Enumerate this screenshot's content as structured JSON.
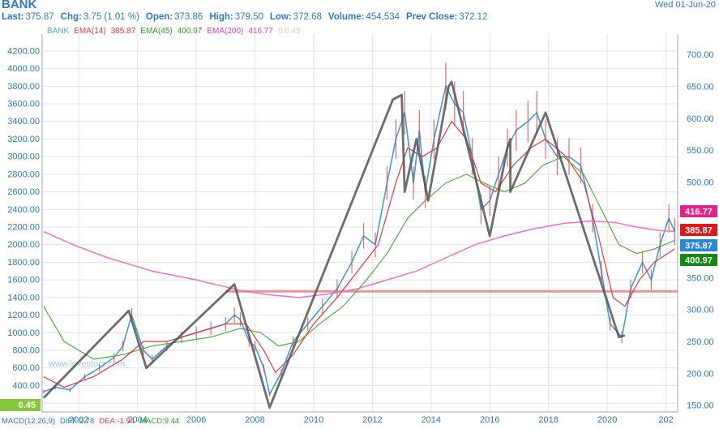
{
  "header": {
    "ticker": "BANK",
    "date": "Wed 01-Jun-20",
    "quote": [
      {
        "label": "Last:",
        "value": "375.87"
      },
      {
        "label": "Chg:",
        "value": "3.75 (1.01 %)"
      },
      {
        "label": "Open:",
        "value": "373.86"
      },
      {
        "label": "High:",
        "value": "379.50"
      },
      {
        "label": "Low:",
        "value": "372.68"
      },
      {
        "label": "Volume:",
        "value": "454,534"
      },
      {
        "label": "Prev Close:",
        "value": "372.12"
      }
    ],
    "legend": [
      {
        "text": "BANK",
        "color": "#5aa0d8"
      },
      {
        "text": "EMA(14)",
        "color": "#e23a3a"
      },
      {
        "text": "385.87",
        "color": "#e23a3a"
      },
      {
        "text": "EMA(45)",
        "color": "#2f9a2f"
      },
      {
        "text": "400.97",
        "color": "#2f9a2f"
      },
      {
        "text": "EMA(200)",
        "color": "#e040b0"
      },
      {
        "text": "416.77",
        "color": "#e040b0"
      },
      {
        "text": "0.0.45",
        "color": "#c8e0a0"
      }
    ],
    "macd": [
      {
        "text": "MACD(12,26,9)",
        "color": "#2c7bbf"
      },
      {
        "text": "DIFF:2.78",
        "color": "#2c7bbf"
      },
      {
        "text": "DEA:-1.94",
        "color": "#e23a3a"
      },
      {
        "text": "MACD:9.44",
        "color": "#2f9a2f"
      }
    ],
    "watermark": "www.investorz.com"
  },
  "chart_data": {
    "type": "line",
    "x_ticks": [
      "2002",
      "2004",
      "2006",
      "2008",
      "2010",
      "2012",
      "2014",
      "2016",
      "2018",
      "2020",
      "202"
    ],
    "x_range": [
      2000.75,
      2022.4
    ],
    "left_axis": {
      "ticks": [
        "200.00",
        "400.00",
        "600.00",
        "800.00",
        "1000.00",
        "1200.00",
        "1400.00",
        "1600.00",
        "1800.00",
        "2000.00",
        "2200.00",
        "2400.00",
        "2600.00",
        "2800.00",
        "3000.00",
        "3200.00",
        "3400.00",
        "3600.00",
        "3800.00",
        "4000.00",
        "4200.00"
      ],
      "range": [
        100,
        4300
      ]
    },
    "right_axis": {
      "ticks": [
        "150.00",
        "200.00",
        "250.00",
        "300.00",
        "350.00",
        "400.00",
        "450.00",
        "500.00",
        "550.00",
        "600.00",
        "650.00",
        "700.00"
      ],
      "range": [
        140,
        720
      ]
    },
    "badges": [
      {
        "text": "416.77",
        "value": 416.77,
        "color": "#e8208c"
      },
      {
        "text": "385.87",
        "value": 385.87,
        "color": "#e01818"
      },
      {
        "text": "375.87",
        "value": 375.87,
        "color": "#2a86d8"
      },
      {
        "text": "400.97",
        "value": 400.97,
        "color": "#138a13"
      }
    ],
    "left_badge": {
      "text": "0.45",
      "color": "#86c83c"
    },
    "price": [
      [
        2000.8,
        330
      ],
      [
        2001.2,
        380
      ],
      [
        2001.7,
        350
      ],
      [
        2002.2,
        500
      ],
      [
        2002.7,
        600
      ],
      [
        2003.2,
        720
      ],
      [
        2003.5,
        850
      ],
      [
        2003.8,
        1200
      ],
      [
        2004.2,
        800
      ],
      [
        2004.5,
        700
      ],
      [
        2005,
        850
      ],
      [
        2005.5,
        950
      ],
      [
        2006,
        1000
      ],
      [
        2006.5,
        1050
      ],
      [
        2007,
        1100
      ],
      [
        2007.3,
        1200
      ],
      [
        2007.5,
        1150
      ],
      [
        2007.8,
        900
      ],
      [
        2008,
        850
      ],
      [
        2008.3,
        600
      ],
      [
        2008.5,
        300
      ],
      [
        2008.9,
        550
      ],
      [
        2009.3,
        900
      ],
      [
        2009.8,
        1100
      ],
      [
        2010.3,
        1300
      ],
      [
        2010.8,
        1500
      ],
      [
        2011.3,
        1800
      ],
      [
        2011.7,
        2100
      ],
      [
        2012.1,
        2000
      ],
      [
        2012.5,
        2700
      ],
      [
        2012.8,
        3200
      ],
      [
        2013.1,
        3500
      ],
      [
        2013.4,
        2700
      ],
      [
        2013.6,
        3300
      ],
      [
        2013.8,
        2600
      ],
      [
        2014.1,
        3200
      ],
      [
        2014.5,
        3800
      ],
      [
        2014.8,
        3600
      ],
      [
        2015.1,
        3500
      ],
      [
        2015.4,
        3000
      ],
      [
        2015.7,
        2400
      ],
      [
        2016,
        2500
      ],
      [
        2016.3,
        2800
      ],
      [
        2016.6,
        3100
      ],
      [
        2016.9,
        3300
      ],
      [
        2017.3,
        3400
      ],
      [
        2017.6,
        3500
      ],
      [
        2017.9,
        3200
      ],
      [
        2018.3,
        3000
      ],
      [
        2018.7,
        3000
      ],
      [
        2019.1,
        2900
      ],
      [
        2019.5,
        2300
      ],
      [
        2019.8,
        1700
      ],
      [
        2020.1,
        1100
      ],
      [
        2020.5,
        950
      ],
      [
        2020.8,
        1500
      ],
      [
        2021.2,
        1800
      ],
      [
        2021.5,
        1600
      ],
      [
        2021.8,
        2000
      ],
      [
        2022.1,
        2300
      ],
      [
        2022.3,
        2150
      ]
    ],
    "ema14": [
      [
        2000.8,
        500
      ],
      [
        2001.5,
        380
      ],
      [
        2002.5,
        500
      ],
      [
        2003.5,
        700
      ],
      [
        2004.2,
        900
      ],
      [
        2005,
        900
      ],
      [
        2006,
        1000
      ],
      [
        2007,
        1100
      ],
      [
        2007.7,
        1100
      ],
      [
        2008.3,
        800
      ],
      [
        2008.7,
        550
      ],
      [
        2009.3,
        750
      ],
      [
        2010,
        1100
      ],
      [
        2010.8,
        1400
      ],
      [
        2011.5,
        1700
      ],
      [
        2012.2,
        2000
      ],
      [
        2012.8,
        2700
      ],
      [
        2013.2,
        3100
      ],
      [
        2013.7,
        3000
      ],
      [
        2014.2,
        3100
      ],
      [
        2014.7,
        3400
      ],
      [
        2015.2,
        3200
      ],
      [
        2015.7,
        2700
      ],
      [
        2016.2,
        2600
      ],
      [
        2016.8,
        2900
      ],
      [
        2017.4,
        3100
      ],
      [
        2017.9,
        3200
      ],
      [
        2018.6,
        3000
      ],
      [
        2019.2,
        2700
      ],
      [
        2019.7,
        2100
      ],
      [
        2020.2,
        1400
      ],
      [
        2020.6,
        1300
      ],
      [
        2021.1,
        1600
      ],
      [
        2021.6,
        1800
      ],
      [
        2022.3,
        1950
      ]
    ],
    "ema45": [
      [
        2000.8,
        1300
      ],
      [
        2001.5,
        900
      ],
      [
        2002.5,
        700
      ],
      [
        2003.5,
        750
      ],
      [
        2004.5,
        850
      ],
      [
        2005.5,
        900
      ],
      [
        2006.5,
        950
      ],
      [
        2007.5,
        1050
      ],
      [
        2008.2,
        1000
      ],
      [
        2008.8,
        850
      ],
      [
        2009.5,
        900
      ],
      [
        2010.2,
        1100
      ],
      [
        2011,
        1300
      ],
      [
        2011.8,
        1600
      ],
      [
        2012.5,
        1900
      ],
      [
        2013.2,
        2300
      ],
      [
        2013.8,
        2500
      ],
      [
        2014.5,
        2700
      ],
      [
        2015.2,
        2800
      ],
      [
        2015.8,
        2700
      ],
      [
        2016.5,
        2600
      ],
      [
        2017.2,
        2700
      ],
      [
        2017.8,
        2900
      ],
      [
        2018.5,
        3000
      ],
      [
        2019.2,
        2800
      ],
      [
        2019.8,
        2400
      ],
      [
        2020.4,
        2000
      ],
      [
        2021,
        1900
      ],
      [
        2021.6,
        1950
      ],
      [
        2022.3,
        2050
      ]
    ],
    "ema200": [
      [
        2000.8,
        2150
      ],
      [
        2001.8,
        2000
      ],
      [
        2003,
        1850
      ],
      [
        2004.5,
        1700
      ],
      [
        2006,
        1600
      ],
      [
        2007.5,
        1480
      ],
      [
        2008.5,
        1430
      ],
      [
        2009.5,
        1400
      ],
      [
        2010.5,
        1440
      ],
      [
        2011.5,
        1500
      ],
      [
        2012.5,
        1600
      ],
      [
        2013.5,
        1700
      ],
      [
        2014.5,
        1850
      ],
      [
        2015.5,
        2000
      ],
      [
        2016.5,
        2100
      ],
      [
        2017.5,
        2180
      ],
      [
        2018.5,
        2240
      ],
      [
        2019.5,
        2270
      ],
      [
        2020.3,
        2250
      ],
      [
        2021,
        2200
      ],
      [
        2021.8,
        2160
      ],
      [
        2022.3,
        2150
      ]
    ],
    "support_line": {
      "left_value": 1470,
      "right_value": 1470,
      "x_start": 2007.0,
      "x_end": 2022.4
    },
    "drawing": [
      [
        2000.8,
        260
      ],
      [
        2003.7,
        1250
      ],
      [
        2004.3,
        600
      ],
      [
        2007.3,
        1550
      ],
      [
        2008.5,
        150
      ],
      [
        2012.7,
        3650
      ],
      [
        2013.0,
        3700
      ],
      [
        2013.1,
        2600
      ],
      [
        2013.5,
        3200
      ],
      [
        2013.9,
        2500
      ],
      [
        2014.6,
        3800
      ],
      [
        2014.7,
        3850
      ],
      [
        2016.0,
        2100
      ],
      [
        2016.6,
        3100
      ],
      [
        2016.7,
        3200
      ],
      [
        2016.7,
        2600
      ],
      [
        2017.9,
        3500
      ],
      [
        2020.4,
        950
      ],
      [
        2020.6,
        970
      ]
    ]
  }
}
